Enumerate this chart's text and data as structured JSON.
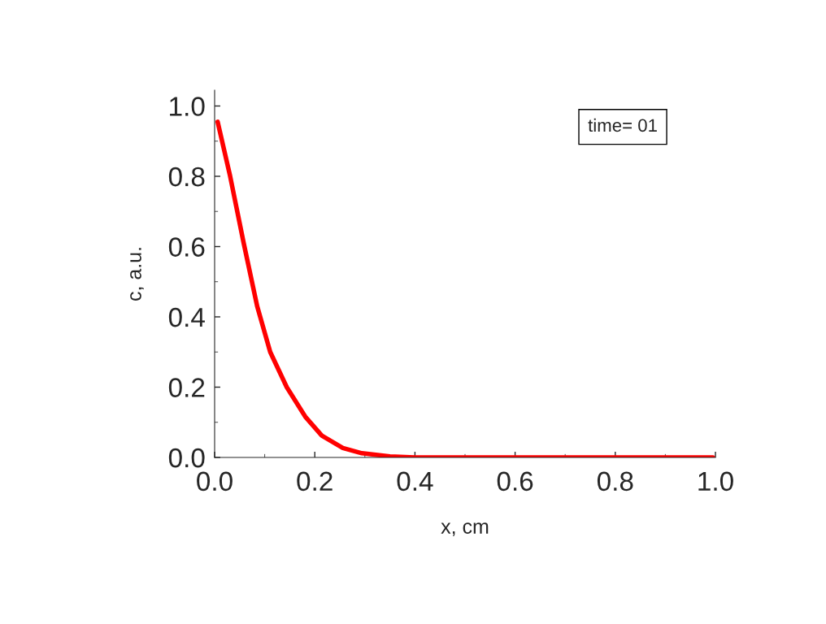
{
  "chart_data": {
    "type": "line",
    "xlabel": "x, cm",
    "ylabel": "c, a.u.",
    "x": [
      0.006,
      0.031,
      0.058,
      0.085,
      0.111,
      0.144,
      0.181,
      0.214,
      0.256,
      0.294,
      0.35,
      0.4,
      0.5,
      0.6,
      0.7,
      0.8,
      0.9,
      0.995
    ],
    "series": [
      {
        "color": "#ff0000",
        "values": [
          0.955,
          0.8,
          0.61,
          0.43,
          0.3,
          0.2,
          0.116,
          0.062,
          0.027,
          0.012,
          0.003,
          0.0,
          0.0,
          0.0,
          0.0,
          0.0,
          0.0,
          0.0
        ]
      }
    ],
    "xlim": [
      0,
      1.0
    ],
    "ylim": [
      0,
      1.045
    ],
    "xticks": [
      {
        "value": 0,
        "label": "0.0"
      },
      0.2,
      0.4,
      0.6,
      0.8,
      {
        "value": 1.0,
        "label": "1.0"
      }
    ],
    "yticks": [
      {
        "value": 0,
        "label": "0.0"
      },
      0.2,
      0.4,
      0.6,
      0.8,
      {
        "value": 1.0,
        "label": "1.0"
      }
    ],
    "annotations": [
      "time= 01"
    ],
    "grid": false,
    "legend": false,
    "marker": "none",
    "line_style": "solid"
  }
}
